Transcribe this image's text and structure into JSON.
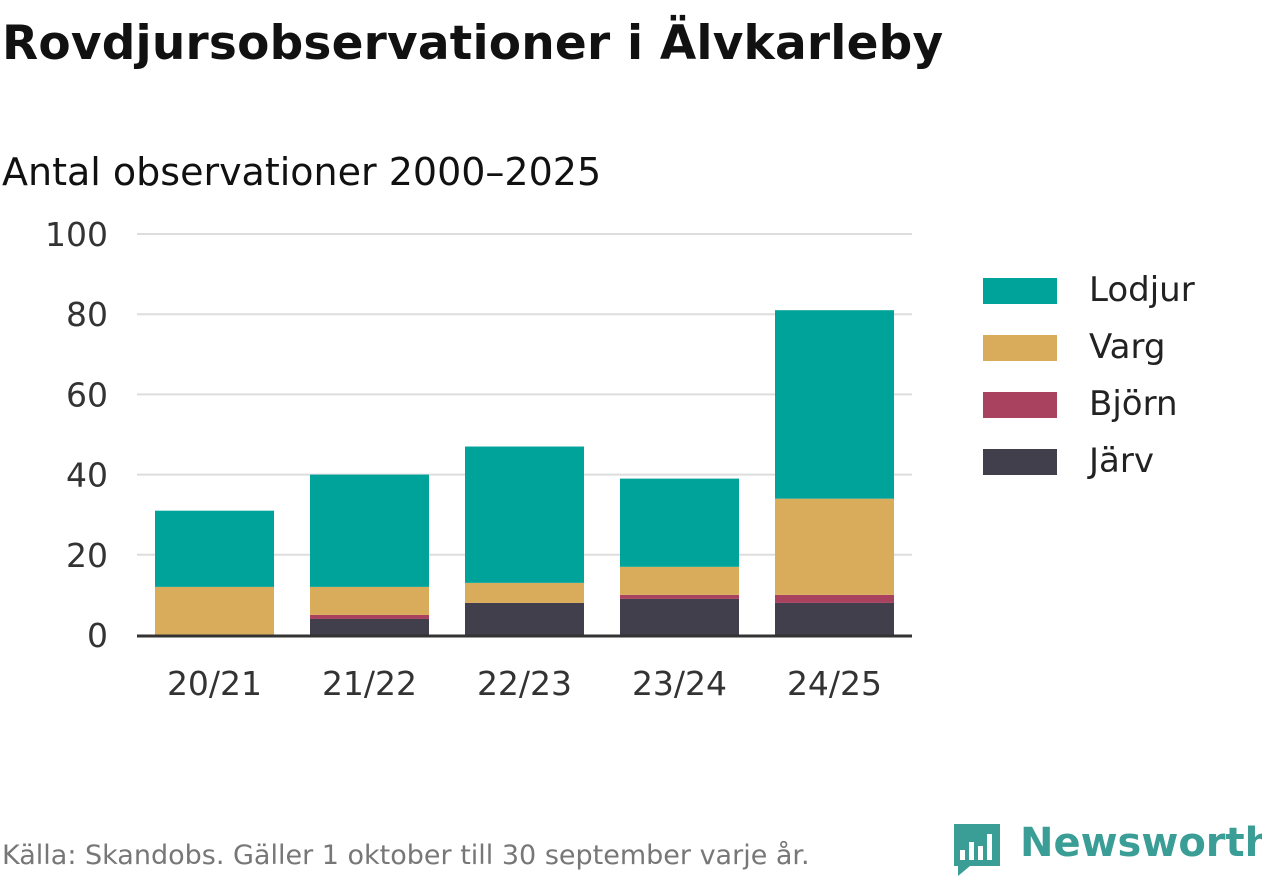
{
  "header": {
    "title": "Rovdjursobservationer i Älvkarleby",
    "subtitle": "Antal observationer 2000–2025"
  },
  "footer": {
    "source": "Källa: Skandobs. Gäller 1 oktober till 30 september varje år.",
    "brand": "Newsworthy",
    "brand_icon": "bar-chart-speech-bubble-icon",
    "brand_color": "#3a9e96"
  },
  "chart_data": {
    "type": "bar",
    "stacked": true,
    "categories": [
      "20/21",
      "21/22",
      "22/23",
      "23/24",
      "24/25"
    ],
    "series": [
      {
        "name": "Järv",
        "color": "#423f4d",
        "values": [
          0,
          4,
          8,
          9,
          8
        ]
      },
      {
        "name": "Björn",
        "color": "#a8425f",
        "values": [
          0,
          1,
          0,
          1,
          2
        ]
      },
      {
        "name": "Varg",
        "color": "#d9ac5b",
        "values": [
          12,
          7,
          5,
          7,
          24
        ]
      },
      {
        "name": "Lodjur",
        "color": "#00a39a",
        "values": [
          19,
          28,
          34,
          22,
          47
        ]
      }
    ],
    "legend_order": [
      "Lodjur",
      "Varg",
      "Björn",
      "Järv"
    ],
    "ylim": [
      0,
      100
    ],
    "yticks": [
      0,
      20,
      40,
      60,
      80,
      100
    ],
    "grid": true,
    "legend_position": "right",
    "xlabel": "",
    "ylabel": ""
  }
}
